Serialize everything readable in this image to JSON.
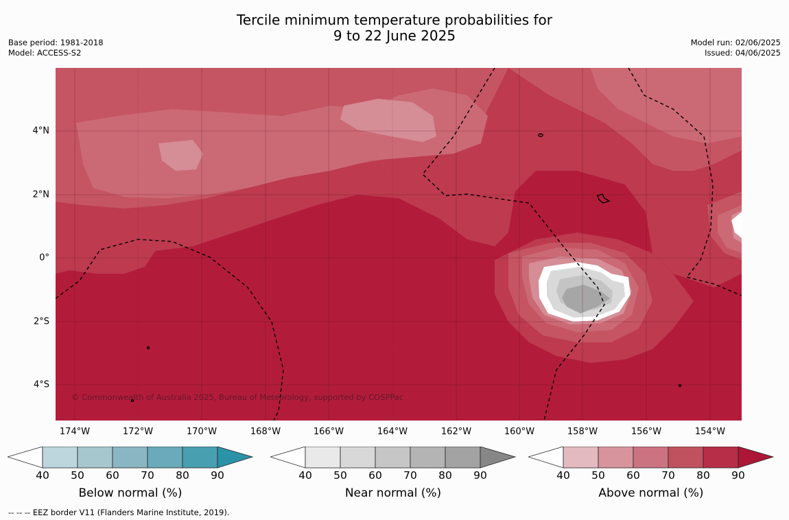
{
  "title": {
    "line1": "Tercile minimum temperature probabilities for",
    "line2": "9 to 22 June 2025"
  },
  "meta_left": {
    "base_period": "Base period: 1981-2018",
    "model": "Model: ACCESS-S2"
  },
  "meta_right": {
    "model_run": "Model run: 02/06/2025",
    "issued": "Issued: 04/06/2025"
  },
  "x_axis": {
    "labels": [
      "174°W",
      "172°W",
      "170°W",
      "168°W",
      "166°W",
      "164°W",
      "162°W",
      "160°W",
      "158°W",
      "156°W",
      "154°W"
    ]
  },
  "y_axis": {
    "labels": [
      "4°N",
      "2°N",
      "0°",
      "2°S",
      "4°S"
    ]
  },
  "copyright": "© Commonwealth of Australia 2025, Bureau of Meteorology, supported by COSPPac",
  "legends": [
    {
      "title": "Below normal (%)",
      "ticks": [
        "40",
        "50",
        "60",
        "70",
        "80",
        "90"
      ],
      "colors": [
        "#bdd5dd",
        "#a6c7ce",
        "#8ab6c3",
        "#6aaaba",
        "#489fb0",
        "#2b93a8"
      ]
    },
    {
      "title": "Near normal (%)",
      "ticks": [
        "40",
        "50",
        "60",
        "70",
        "80",
        "90"
      ],
      "colors": [
        "#e9e9e9",
        "#d8d8d8",
        "#c6c6c6",
        "#b4b4b4",
        "#a3a3a3",
        "#878787"
      ]
    },
    {
      "title": "Above normal (%)",
      "ticks": [
        "40",
        "50",
        "60",
        "70",
        "80",
        "90"
      ],
      "colors": [
        "#e3bac0",
        "#d7949c",
        "#cc7381",
        "#c0525f",
        "#b72e48",
        "#ad1737"
      ]
    }
  ],
  "footnote": "--  --  -- EEZ border V11 (Flanders Marine Institute, 2019).",
  "map_colors": {
    "above_80": "#b21c3a",
    "above_70": "#bd3a4f",
    "above_60": "#c55563",
    "above_50": "#cb6a75",
    "above_40": "#d58d96",
    "near_lo": "#d9d9d9",
    "near_mid": "#c4c4c4",
    "near_hi": "#a6a6a6",
    "neutral": "#ffffff"
  }
}
